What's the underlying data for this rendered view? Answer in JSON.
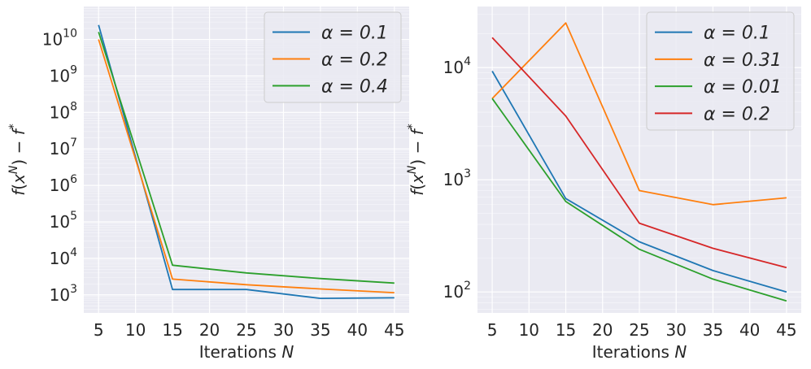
{
  "chart_data": [
    {
      "type": "line",
      "yscale": "log",
      "title": "",
      "xlabel": "Iterations",
      "xlabel_var": "N",
      "ylabel": "f(x^N) − f^*",
      "ylabel_parts": {
        "f": "f",
        "x": "x",
        "N": "N",
        "minus": "−",
        "star": "*"
      },
      "xlim": [
        3.0,
        47.0
      ],
      "ylim": [
        320,
        80000000000
      ],
      "xticks": [
        5,
        10,
        15,
        20,
        25,
        30,
        35,
        40,
        45
      ],
      "yticks": [
        {
          "value": 1000,
          "base": "10",
          "exp": "3"
        },
        {
          "value": 10000,
          "base": "10",
          "exp": "4"
        },
        {
          "value": 100000,
          "base": "10",
          "exp": "5"
        },
        {
          "value": 1000000,
          "base": "10",
          "exp": "6"
        },
        {
          "value": 10000000,
          "base": "10",
          "exp": "7"
        },
        {
          "value": 100000000,
          "base": "10",
          "exp": "8"
        },
        {
          "value": 1000000000,
          "base": "10",
          "exp": "9"
        },
        {
          "value": 10000000000,
          "base": "10",
          "exp": "10"
        }
      ],
      "legend_position": "top-right",
      "series": [
        {
          "name": "α = 0.1",
          "color": "#1f77b4",
          "x": [
            5,
            15,
            25,
            35,
            45
          ],
          "values": [
            25000000000,
            1400,
            1400,
            800,
            830
          ]
        },
        {
          "name": "α = 0.2",
          "color": "#ff7f0e",
          "x": [
            5,
            15,
            25,
            35,
            45
          ],
          "values": [
            10000000000,
            2700,
            1900,
            1450,
            1150
          ]
        },
        {
          "name": "α = 0.4",
          "color": "#2ca02c",
          "x": [
            5,
            15,
            25,
            35,
            45
          ],
          "values": [
            16000000000,
            6500,
            4000,
            2800,
            2100
          ]
        }
      ]
    },
    {
      "type": "line",
      "yscale": "log",
      "title": "",
      "xlabel": "Iterations",
      "xlabel_var": "N",
      "ylabel": "f(x^N) − f^*",
      "ylabel_parts": {
        "f": "f",
        "x": "x",
        "N": "N",
        "minus": "−",
        "star": "*"
      },
      "xlim": [
        3.0,
        47.0
      ],
      "ylim": [
        65,
        35000
      ],
      "xticks": [
        5,
        10,
        15,
        20,
        25,
        30,
        35,
        40,
        45
      ],
      "yticks": [
        {
          "value": 100,
          "base": "10",
          "exp": "2"
        },
        {
          "value": 1000,
          "base": "10",
          "exp": "3"
        },
        {
          "value": 10000,
          "base": "10",
          "exp": "4"
        }
      ],
      "legend_position": "top-right",
      "series": [
        {
          "name": "α = 0.1",
          "color": "#1f77b4",
          "x": [
            5,
            15,
            25,
            35,
            45
          ],
          "values": [
            9300,
            680,
            280,
            155,
            100
          ]
        },
        {
          "name": "α = 0.31",
          "color": "#ff7f0e",
          "x": [
            5,
            15,
            25,
            35,
            45
          ],
          "values": [
            5300,
            25000,
            800,
            600,
            690
          ]
        },
        {
          "name": "α = 0.01",
          "color": "#2ca02c",
          "x": [
            5,
            15,
            25,
            35,
            45
          ],
          "values": [
            5300,
            640,
            240,
            130,
            83
          ]
        },
        {
          "name": "α = 0.2",
          "color": "#d62728",
          "x": [
            5,
            15,
            25,
            35,
            45
          ],
          "values": [
            18500,
            3700,
            410,
            245,
            165
          ]
        }
      ]
    }
  ]
}
